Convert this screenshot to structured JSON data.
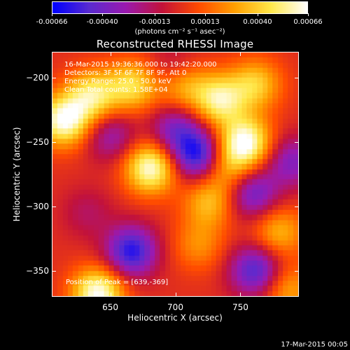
{
  "colorbar": {
    "ticks": [
      "-0.00066",
      "-0.00040",
      "-0.00013",
      "0.00013",
      "0.00040",
      "0.00066"
    ],
    "units": "(photons cm⁻² s⁻¹ asec⁻²)",
    "colormap_stops": [
      "#0000ff",
      "#5a2bd0",
      "#9a1ab0",
      "#c2123b",
      "#ff4b00",
      "#ff9f00",
      "#ffe84a",
      "#ffffff"
    ]
  },
  "plot": {
    "title": "Reconstructed RHESSI Image",
    "info": [
      "16-Mar-2015 19:36:36.000 to 19:42:20.000",
      "Detectors: 3F 5F 6F 7F 8F 9F, Att 0",
      "Energy Range: 25.0 - 50.0 keV",
      "Clean    Total counts: 1.58E+04"
    ],
    "peak_label": "Position of Peak = [639,-369]",
    "footer_date": "17-Mar-2015 00:05"
  },
  "chart_data": {
    "type": "heatmap",
    "title": "Reconstructed RHESSI Image",
    "xlabel": "Heliocentric X (arcsec)",
    "ylabel": "Heliocentric Y (arcsec)",
    "xlim": [
      605,
      795
    ],
    "ylim": [
      -370,
      -180
    ],
    "x_ticks": [
      650,
      700,
      750
    ],
    "y_ticks": [
      -200,
      -250,
      -300,
      -350
    ],
    "value_range": [
      -0.00066,
      0.00066
    ],
    "peak": [
      639,
      -369
    ],
    "sources": [
      {
        "x": 614,
        "y": -233,
        "value": 0.00066
      },
      {
        "x": 636,
        "y": -214,
        "value": 0.0005
      },
      {
        "x": 667,
        "y": -206,
        "value": 0.00045
      },
      {
        "x": 705,
        "y": -204,
        "value": 0.00046
      },
      {
        "x": 734,
        "y": -217,
        "value": 0.00054
      },
      {
        "x": 762,
        "y": -205,
        "value": 0.0004
      },
      {
        "x": 681,
        "y": -270,
        "value": 0.00064
      },
      {
        "x": 754,
        "y": -250,
        "value": 0.00066
      },
      {
        "x": 740,
        "y": -270,
        "value": 0.0003
      },
      {
        "x": 726,
        "y": -297,
        "value": 0.00035
      },
      {
        "x": 718,
        "y": -330,
        "value": 0.00024
      },
      {
        "x": 780,
        "y": -320,
        "value": 0.00034
      },
      {
        "x": 640,
        "y": -368,
        "value": 0.00066
      },
      {
        "x": 632,
        "y": -305,
        "value": -0.00015
      },
      {
        "x": 787,
        "y": -365,
        "value": 0.0003
      },
      {
        "x": 700,
        "y": -240,
        "value": -0.00036
      },
      {
        "x": 717,
        "y": -260,
        "value": -0.0006
      },
      {
        "x": 666,
        "y": -335,
        "value": -0.00058
      },
      {
        "x": 650,
        "y": -245,
        "value": -0.0003
      },
      {
        "x": 762,
        "y": -350,
        "value": -0.0005
      },
      {
        "x": 790,
        "y": -265,
        "value": -0.00035
      },
      {
        "x": 700,
        "y": -195,
        "value": -0.0003
      },
      {
        "x": 760,
        "y": -290,
        "value": -0.00042
      }
    ]
  }
}
